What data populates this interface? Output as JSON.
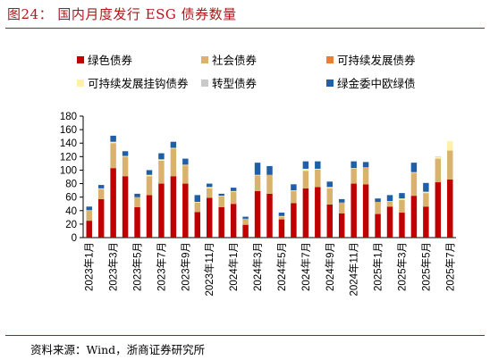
{
  "figure": {
    "title": "图24：  国内月度发行 ESG 债券数量",
    "source": "资料来源：Wind，浙商证券研究所"
  },
  "chart_data": {
    "type": "bar",
    "stacked": true,
    "title": "",
    "xlabel": "",
    "ylabel": "",
    "ylim": [
      0,
      180
    ],
    "yticks": [
      0,
      20,
      40,
      60,
      80,
      100,
      120,
      140,
      160,
      180
    ],
    "grid": false,
    "legend_position": "top",
    "categories": [
      "2023年1月",
      "2023年2月",
      "2023年3月",
      "2023年4月",
      "2023年5月",
      "2023年6月",
      "2023年7月",
      "2023年8月",
      "2023年9月",
      "2023年10月",
      "2023年11月",
      "2023年12月",
      "2024年1月",
      "2024年2月",
      "2024年3月",
      "2024年4月",
      "2024年5月",
      "2024年6月",
      "2024年7月",
      "2024年8月",
      "2024年9月",
      "2024年10月",
      "2024年11月",
      "2024年12月",
      "2025年1月",
      "2025年2月",
      "2025年3月",
      "2025年4月",
      "2025年5月",
      "2025年6月",
      "2025年7月"
    ],
    "visible_tick_labels": [
      "2023年1月",
      "2023年3月",
      "2023年5月",
      "2023年7月",
      "2023年9月",
      "2023年11月",
      "2024年1月",
      "2024年3月",
      "2024年5月",
      "2024年7月",
      "2024年9月",
      "2024年11月",
      "2025年1月",
      "2025年3月",
      "2025年5月",
      "2025年7月"
    ],
    "series": [
      {
        "name": "绿色债券",
        "color": "#c00000",
        "values": [
          25,
          57,
          103,
          91,
          45,
          63,
          80,
          91,
          80,
          38,
          59,
          45,
          50,
          19,
          69,
          65,
          27,
          51,
          73,
          75,
          49,
          36,
          80,
          79,
          35,
          46,
          37,
          62,
          46,
          82,
          86
        ]
      },
      {
        "name": "社会债券",
        "color": "#d9b26e",
        "values": [
          16,
          15,
          37,
          29,
          15,
          28,
          34,
          41,
          27,
          14,
          14,
          16,
          18,
          9,
          23,
          28,
          4,
          18,
          26,
          26,
          24,
          16,
          22,
          23,
          18,
          7,
          19,
          34,
          20,
          35,
          43
        ]
      },
      {
        "name": "可持续发展债券",
        "color": "#ed7d31",
        "values": [
          0,
          0,
          0,
          0,
          0,
          0,
          0,
          0,
          0,
          0,
          0,
          0,
          0,
          0,
          0,
          0,
          0,
          0,
          0,
          0,
          0,
          0,
          0,
          1,
          0,
          0,
          0,
          0,
          0,
          0,
          0
        ]
      },
      {
        "name": "可持续发展挂钩债券",
        "color": "#fff2a8",
        "values": [
          0,
          1,
          2,
          1,
          0,
          2,
          2,
          1,
          1,
          1,
          2,
          1,
          1,
          0,
          1,
          0,
          1,
          1,
          3,
          1,
          2,
          0,
          1,
          1,
          0,
          1,
          2,
          1,
          2,
          2,
          14
        ]
      },
      {
        "name": "转型债券",
        "color": "#c9c9c9",
        "values": [
          0,
          0,
          0,
          0,
          0,
          0,
          0,
          0,
          0,
          0,
          0,
          0,
          0,
          0,
          0,
          0,
          0,
          0,
          0,
          0,
          0,
          0,
          0,
          0,
          0,
          0,
          0,
          0,
          0,
          1,
          0
        ]
      },
      {
        "name": "绿金委中欧绿债",
        "color": "#1f5fa8",
        "values": [
          5,
          5,
          9,
          7,
          5,
          7,
          9,
          9,
          9,
          10,
          5,
          3,
          5,
          3,
          18,
          13,
          5,
          9,
          11,
          11,
          8,
          5,
          10,
          8,
          5,
          9,
          8,
          14,
          13,
          0,
          0
        ]
      }
    ]
  }
}
